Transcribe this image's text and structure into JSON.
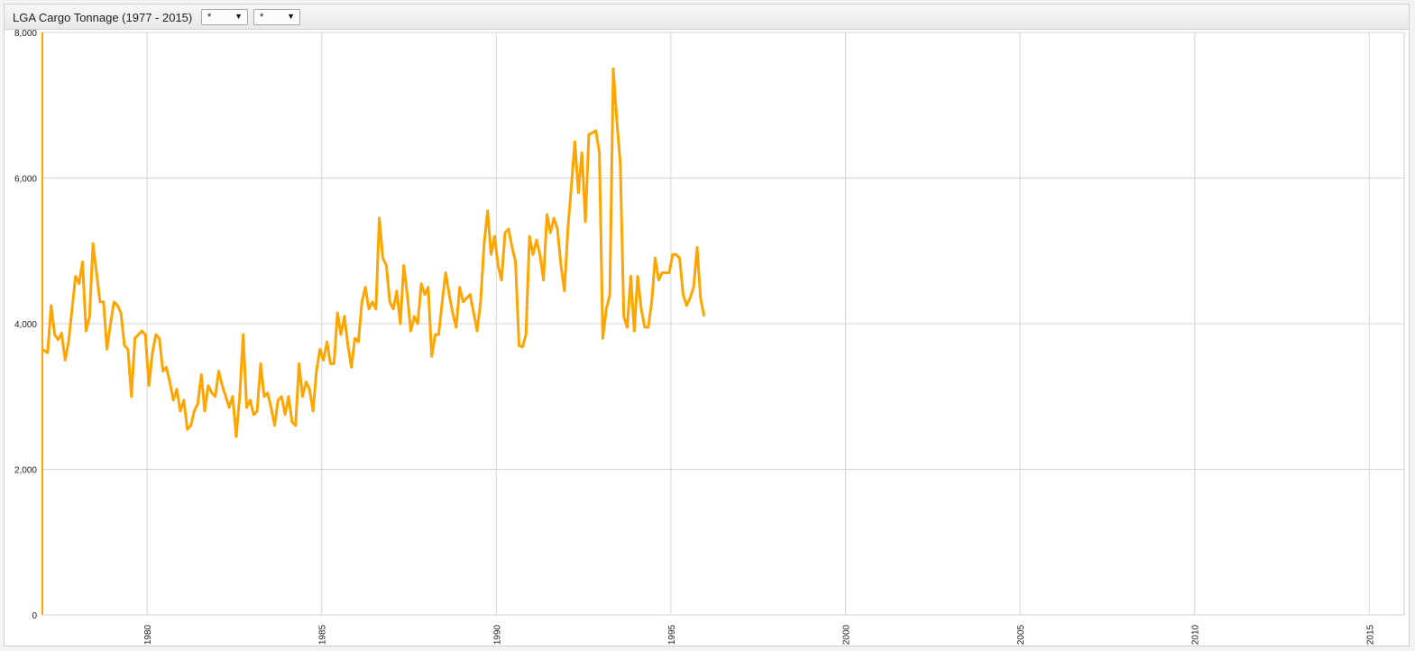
{
  "header": {
    "title": "LGA Cargo Tonnage (1977 - 2015)",
    "selects": [
      {
        "value": "*",
        "arrow": "▼"
      },
      {
        "value": "*",
        "arrow": "▼"
      }
    ]
  },
  "colors": {
    "series": "#ffa500",
    "grid": "#d6d6d6",
    "axis": "#ffa500"
  },
  "chart_data": {
    "type": "line",
    "title": "LGA Cargo Tonnage (1977 - 2015)",
    "xlabel": "",
    "ylabel": "",
    "xlim": [
      1977.0,
      2016.0
    ],
    "ylim": [
      0,
      8000
    ],
    "grid": true,
    "y_ticks": [
      {
        "value": 0,
        "label": "0"
      },
      {
        "value": 2000,
        "label": "2,000"
      },
      {
        "value": 4000,
        "label": "4,000"
      },
      {
        "value": 6000,
        "label": "6,000"
      },
      {
        "value": 8000,
        "label": "8,000"
      }
    ],
    "x_ticks": [
      {
        "value": 1980,
        "label": "1980"
      },
      {
        "value": 1985,
        "label": "1985"
      },
      {
        "value": 1990,
        "label": "1990"
      },
      {
        "value": 1995,
        "label": "1995"
      },
      {
        "value": 2000,
        "label": "2000"
      },
      {
        "value": 2005,
        "label": "2005"
      },
      {
        "value": 2010,
        "label": "2010"
      },
      {
        "value": 2015,
        "label": "2015"
      }
    ],
    "series": [
      {
        "points": [
          [
            1977.0,
            3650
          ],
          [
            1977.15,
            3600
          ],
          [
            1977.25,
            4250
          ],
          [
            1977.35,
            3850
          ],
          [
            1977.45,
            3780
          ],
          [
            1977.55,
            3870
          ],
          [
            1977.65,
            3500
          ],
          [
            1977.75,
            3750
          ],
          [
            1977.85,
            4200
          ],
          [
            1977.95,
            4650
          ],
          [
            1978.05,
            4550
          ],
          [
            1978.15,
            4850
          ],
          [
            1978.25,
            3900
          ],
          [
            1978.35,
            4100
          ],
          [
            1978.45,
            5100
          ],
          [
            1978.55,
            4700
          ],
          [
            1978.65,
            4300
          ],
          [
            1978.75,
            4300
          ],
          [
            1978.85,
            3650
          ],
          [
            1978.95,
            4000
          ],
          [
            1979.05,
            4300
          ],
          [
            1979.15,
            4250
          ],
          [
            1979.25,
            4150
          ],
          [
            1979.35,
            3700
          ],
          [
            1979.45,
            3650
          ],
          [
            1979.55,
            3000
          ],
          [
            1979.65,
            3800
          ],
          [
            1979.75,
            3850
          ],
          [
            1979.85,
            3900
          ],
          [
            1979.95,
            3850
          ],
          [
            1980.05,
            3150
          ],
          [
            1980.15,
            3600
          ],
          [
            1980.25,
            3850
          ],
          [
            1980.35,
            3800
          ],
          [
            1980.45,
            3350
          ],
          [
            1980.55,
            3400
          ],
          [
            1980.65,
            3200
          ],
          [
            1980.75,
            2950
          ],
          [
            1980.85,
            3100
          ],
          [
            1980.95,
            2800
          ],
          [
            1981.05,
            2950
          ],
          [
            1981.15,
            2550
          ],
          [
            1981.25,
            2600
          ],
          [
            1981.35,
            2800
          ],
          [
            1981.45,
            2900
          ],
          [
            1981.55,
            3300
          ],
          [
            1981.65,
            2800
          ],
          [
            1981.75,
            3150
          ],
          [
            1981.85,
            3050
          ],
          [
            1981.95,
            3000
          ],
          [
            1982.05,
            3350
          ],
          [
            1982.15,
            3150
          ],
          [
            1982.25,
            3000
          ],
          [
            1982.35,
            2850
          ],
          [
            1982.45,
            3000
          ],
          [
            1982.55,
            2450
          ],
          [
            1982.65,
            3000
          ],
          [
            1982.75,
            3850
          ],
          [
            1982.85,
            2850
          ],
          [
            1982.95,
            2950
          ],
          [
            1983.05,
            2750
          ],
          [
            1983.15,
            2800
          ],
          [
            1983.25,
            3450
          ],
          [
            1983.35,
            3000
          ],
          [
            1983.45,
            3050
          ],
          [
            1983.55,
            2850
          ],
          [
            1983.65,
            2600
          ],
          [
            1983.75,
            2950
          ],
          [
            1983.85,
            3000
          ],
          [
            1983.95,
            2750
          ],
          [
            1984.05,
            3000
          ],
          [
            1984.15,
            2650
          ],
          [
            1984.25,
            2600
          ],
          [
            1984.35,
            3450
          ],
          [
            1984.45,
            3000
          ],
          [
            1984.55,
            3200
          ],
          [
            1984.65,
            3100
          ],
          [
            1984.75,
            2800
          ],
          [
            1984.85,
            3350
          ],
          [
            1984.95,
            3650
          ],
          [
            1985.05,
            3500
          ],
          [
            1985.15,
            3750
          ],
          [
            1985.25,
            3450
          ],
          [
            1985.35,
            3450
          ],
          [
            1985.45,
            4150
          ],
          [
            1985.55,
            3850
          ],
          [
            1985.65,
            4100
          ],
          [
            1985.75,
            3700
          ],
          [
            1985.85,
            3400
          ],
          [
            1985.95,
            3800
          ],
          [
            1986.05,
            3750
          ],
          [
            1986.15,
            4300
          ],
          [
            1986.25,
            4500
          ],
          [
            1986.35,
            4200
          ],
          [
            1986.45,
            4300
          ],
          [
            1986.55,
            4200
          ],
          [
            1986.65,
            5450
          ],
          [
            1986.75,
            4900
          ],
          [
            1986.85,
            4800
          ],
          [
            1986.95,
            4300
          ],
          [
            1987.05,
            4200
          ],
          [
            1987.15,
            4450
          ],
          [
            1987.25,
            4000
          ],
          [
            1987.35,
            4800
          ],
          [
            1987.45,
            4400
          ],
          [
            1987.55,
            3900
          ],
          [
            1987.65,
            4100
          ],
          [
            1987.75,
            4000
          ],
          [
            1987.85,
            4550
          ],
          [
            1987.95,
            4400
          ],
          [
            1988.05,
            4500
          ],
          [
            1988.15,
            3550
          ],
          [
            1988.25,
            3850
          ],
          [
            1988.35,
            3850
          ],
          [
            1988.45,
            4300
          ],
          [
            1988.55,
            4700
          ],
          [
            1988.65,
            4400
          ],
          [
            1988.75,
            4150
          ],
          [
            1988.85,
            3950
          ],
          [
            1988.95,
            4500
          ],
          [
            1989.05,
            4300
          ],
          [
            1989.15,
            4350
          ],
          [
            1989.25,
            4400
          ],
          [
            1989.35,
            4150
          ],
          [
            1989.45,
            3900
          ],
          [
            1989.55,
            4300
          ],
          [
            1989.65,
            5100
          ],
          [
            1989.75,
            5550
          ],
          [
            1989.85,
            4950
          ],
          [
            1989.95,
            5200
          ],
          [
            1990.05,
            4800
          ],
          [
            1990.15,
            4600
          ],
          [
            1990.25,
            5250
          ],
          [
            1990.35,
            5300
          ],
          [
            1990.45,
            5050
          ],
          [
            1990.55,
            4850
          ],
          [
            1990.65,
            3700
          ],
          [
            1990.75,
            3680
          ],
          [
            1990.85,
            3850
          ],
          [
            1990.95,
            5200
          ],
          [
            1991.05,
            4950
          ],
          [
            1991.15,
            5150
          ],
          [
            1991.25,
            4950
          ],
          [
            1991.35,
            4600
          ],
          [
            1991.45,
            5500
          ],
          [
            1991.55,
            5250
          ],
          [
            1991.65,
            5450
          ],
          [
            1991.75,
            5300
          ],
          [
            1991.85,
            4800
          ],
          [
            1991.95,
            4450
          ],
          [
            1992.05,
            5300
          ],
          [
            1992.15,
            5900
          ],
          [
            1992.25,
            6500
          ],
          [
            1992.35,
            5800
          ],
          [
            1992.45,
            6350
          ],
          [
            1992.55,
            5400
          ],
          [
            1992.65,
            6600
          ],
          [
            1992.75,
            6620
          ],
          [
            1992.85,
            6650
          ],
          [
            1992.95,
            6350
          ],
          [
            1993.05,
            3800
          ],
          [
            1993.15,
            4200
          ],
          [
            1993.25,
            4400
          ],
          [
            1993.35,
            7500
          ],
          [
            1993.45,
            6800
          ],
          [
            1993.55,
            6200
          ],
          [
            1993.65,
            4100
          ],
          [
            1993.75,
            3950
          ],
          [
            1993.85,
            4650
          ],
          [
            1993.95,
            3900
          ],
          [
            1994.05,
            4650
          ],
          [
            1994.15,
            4200
          ],
          [
            1994.25,
            3950
          ],
          [
            1994.35,
            3950
          ],
          [
            1994.45,
            4300
          ],
          [
            1994.55,
            4900
          ],
          [
            1994.65,
            4600
          ],
          [
            1994.75,
            4700
          ],
          [
            1994.85,
            4700
          ],
          [
            1994.95,
            4700
          ],
          [
            1995.05,
            4950
          ],
          [
            1995.15,
            4950
          ],
          [
            1995.25,
            4900
          ],
          [
            1995.35,
            4400
          ],
          [
            1995.45,
            4250
          ],
          [
            1995.55,
            4350
          ],
          [
            1995.65,
            4500
          ],
          [
            1995.75,
            5050
          ],
          [
            1995.85,
            4350
          ],
          [
            1995.95,
            4100
          ]
        ]
      }
    ]
  }
}
